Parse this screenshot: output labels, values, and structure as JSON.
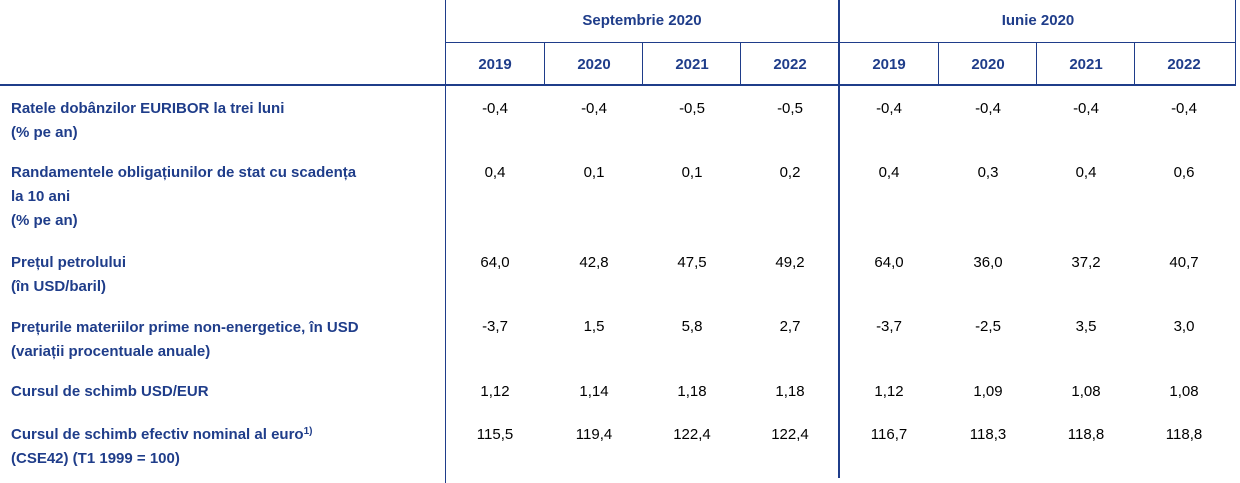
{
  "groups": [
    {
      "title": "Septembrie 2020",
      "years": [
        "2019",
        "2020",
        "2021",
        "2022"
      ]
    },
    {
      "title": "Iunie 2020",
      "years": [
        "2019",
        "2020",
        "2021",
        "2022"
      ]
    }
  ],
  "rows": [
    {
      "lines": [
        "Ratele dobânzilor EURIBOR la trei luni",
        "(% pe an)"
      ],
      "values": [
        "-0,4",
        "-0,4",
        "-0,5",
        "-0,5",
        "-0,4",
        "-0,4",
        "-0,4",
        "-0,4"
      ]
    },
    {
      "lines": [
        "Randamentele obligațiunilor de stat cu scadența",
        "la 10 ani",
        "(% pe an)"
      ],
      "values": [
        "0,4",
        "0,1",
        "0,1",
        "0,2",
        "0,4",
        "0,3",
        "0,4",
        "0,6"
      ]
    },
    {
      "lines": [
        "Prețul petrolului",
        "(în USD/baril)"
      ],
      "values": [
        "64,0",
        "42,8",
        "47,5",
        "49,2",
        "64,0",
        "36,0",
        "37,2",
        "40,7"
      ]
    },
    {
      "lines": [
        "Prețurile materiilor prime non-energetice, în USD",
        "(variații procentuale anuale)"
      ],
      "values": [
        "-3,7",
        "1,5",
        "5,8",
        "2,7",
        "-3,7",
        "-2,5",
        "3,5",
        "3,0"
      ]
    },
    {
      "lines": [
        "Cursul de schimb USD/EUR"
      ],
      "values": [
        "1,12",
        "1,14",
        "1,18",
        "1,18",
        "1,12",
        "1,09",
        "1,08",
        "1,08"
      ]
    },
    {
      "lines": [
        "Cursul de schimb efectiv nominal al euro",
        "(CSE42) (T1 1999 = 100)"
      ],
      "footnote": "1)",
      "values": [
        "115,5",
        "119,4",
        "122,4",
        "122,4",
        "116,7",
        "118,3",
        "118,8",
        "118,8"
      ]
    }
  ],
  "colors": {
    "header_text": "#1f3d8a",
    "rule": "#1f3d8a",
    "body_text": "#000000"
  }
}
